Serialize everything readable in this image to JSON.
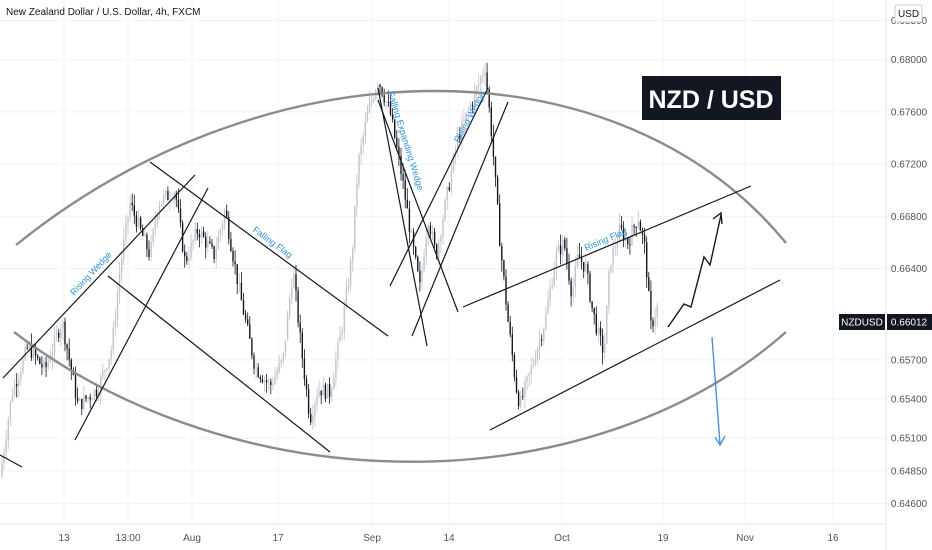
{
  "chart_data": {
    "type": "candlestick",
    "title": "New Zealand Dollar / U.S. Dollar, 4h, FXCM",
    "currency_button": "USD",
    "banner": "NZD / USD",
    "symbol": "NZDUSD",
    "last_price": "0.66012",
    "ylim": [
      0.6455,
      0.6835
    ],
    "y_ticks": [
      "0.64600",
      "0.64850",
      "0.65100",
      "0.65400",
      "0.65700",
      "0.66012",
      "0.66400",
      "0.66800",
      "0.67200",
      "0.67600",
      "0.68000",
      "0.68300"
    ],
    "x_ticks": [
      "13",
      "13:00",
      "Aug",
      "17",
      "Sep",
      "14",
      "Oct",
      "19",
      "Nov",
      "16"
    ],
    "annotations": [
      "Rising Wedge",
      "Falling Flag",
      "Falling Expanding Wedge",
      "Rising Wedge",
      "Rising Flag"
    ],
    "grid": true,
    "colors": {
      "up": "#bfc3cc",
      "down": "#131722",
      "guide": "#8c8c8c",
      "arrow_down": "#4a90d9",
      "label_bg": "#131722"
    }
  }
}
